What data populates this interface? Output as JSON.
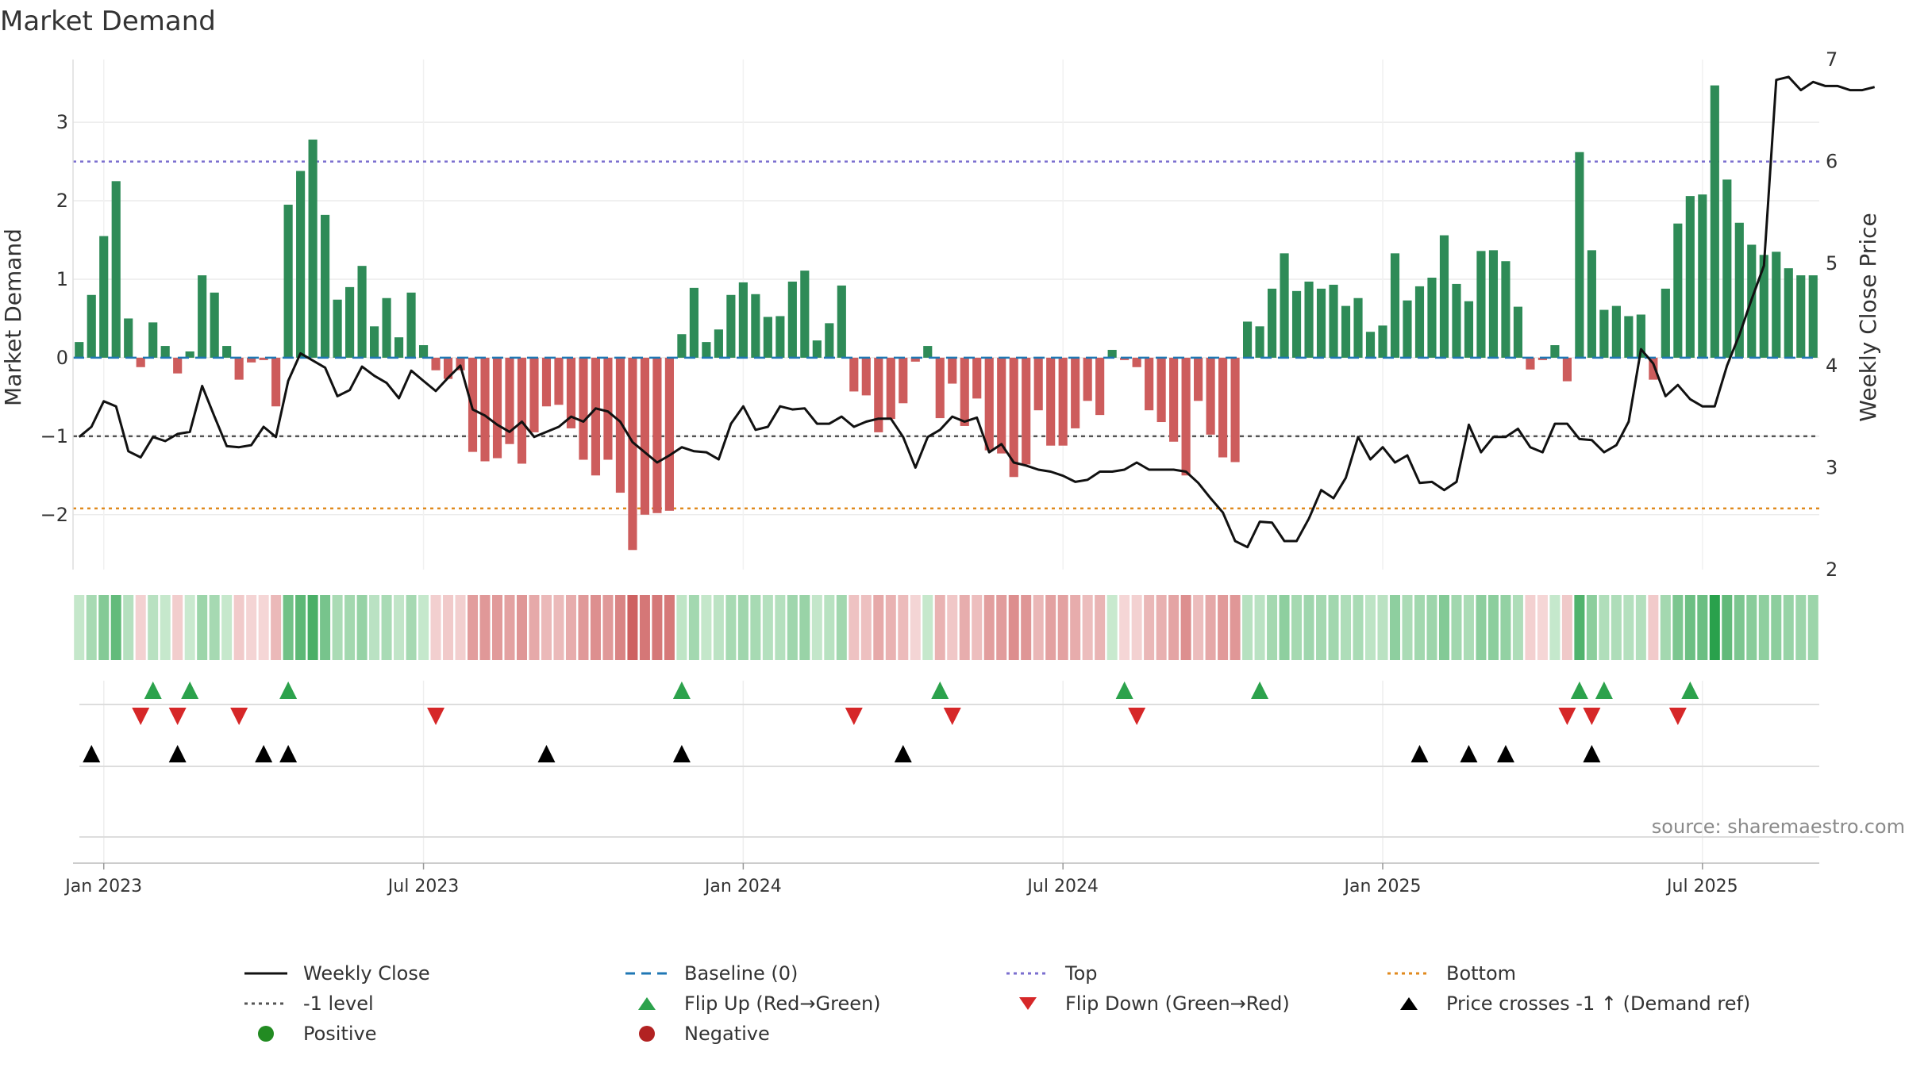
{
  "chart_data": {
    "type": "bar",
    "title": "Market Demand",
    "ylabel": "Market Demand",
    "y2label": "Weekly Close Price",
    "ylim": [
      -2.7,
      3.8
    ],
    "y2lim": [
      2.0,
      7.0
    ],
    "yticks": [
      3,
      2,
      1,
      0,
      -1,
      -2
    ],
    "yticklabels": [
      "3",
      "2",
      "1",
      "0",
      "−1",
      "−2"
    ],
    "y2ticks": [
      7,
      6,
      5,
      4,
      3,
      2
    ],
    "y2ticklabels": [
      "7",
      "6",
      "5",
      "4",
      "3",
      "2"
    ],
    "reference_lines": {
      "top": 2.5,
      "bottom": -1.92,
      "minus_one": -1.0,
      "baseline": 0
    },
    "xticks": [
      {
        "label": "Jan 2023",
        "week": 2
      },
      {
        "label": "Jul 2023",
        "week": 28
      },
      {
        "label": "Jan 2024",
        "week": 54
      },
      {
        "label": "Jul 2024",
        "week": 80
      },
      {
        "label": "Jan 2025",
        "week": 106
      },
      {
        "label": "Jul 2025",
        "week": 132
      }
    ],
    "demand": [
      0.2,
      0.8,
      1.55,
      2.25,
      0.5,
      -0.12,
      0.45,
      0.15,
      -0.2,
      0.08,
      1.05,
      0.83,
      0.15,
      -0.28,
      -0.06,
      -0.03,
      -0.62,
      1.95,
      2.38,
      2.78,
      1.82,
      0.74,
      0.9,
      1.17,
      0.4,
      0.76,
      0.26,
      0.83,
      0.16,
      -0.16,
      -0.27,
      -0.16,
      -1.2,
      -1.32,
      -1.28,
      -1.1,
      -1.35,
      -0.95,
      -0.62,
      -0.6,
      -0.9,
      -1.3,
      -1.5,
      -1.3,
      -1.72,
      -2.45,
      -2.0,
      -1.98,
      -1.95,
      0.3,
      0.89,
      0.2,
      0.36,
      0.8,
      0.96,
      0.81,
      0.52,
      0.53,
      0.97,
      1.11,
      0.22,
      0.44,
      0.92,
      -0.43,
      -0.48,
      -0.95,
      -0.78,
      -0.58,
      -0.05,
      0.15,
      -0.77,
      -0.33,
      -0.87,
      -0.52,
      -1.18,
      -1.22,
      -1.52,
      -1.36,
      -0.67,
      -1.12,
      -1.12,
      -0.9,
      -0.55,
      -0.73,
      0.1,
      -0.03,
      -0.12,
      -0.67,
      -0.82,
      -1.07,
      -1.5,
      -0.55,
      -0.98,
      -1.27,
      -1.33,
      0.46,
      0.4,
      0.88,
      1.33,
      0.85,
      0.97,
      0.88,
      0.93,
      0.66,
      0.76,
      0.33,
      0.41,
      1.33,
      0.73,
      0.91,
      1.02,
      1.56,
      0.94,
      0.72,
      1.36,
      1.37,
      1.23,
      0.65,
      -0.15,
      -0.03,
      0.16,
      -0.3,
      2.62,
      1.37,
      0.61,
      0.66,
      0.53,
      0.55,
      -0.28,
      0.88,
      1.71,
      2.06,
      2.08,
      3.47,
      2.27,
      1.72,
      1.44,
      1.31,
      1.35,
      1.14,
      1.05,
      1.05
    ],
    "price": [
      3.3,
      3.4,
      3.65,
      3.6,
      3.16,
      3.1,
      3.3,
      3.26,
      3.33,
      3.35,
      3.8,
      3.5,
      3.21,
      3.2,
      3.22,
      3.4,
      3.3,
      3.85,
      4.12,
      4.05,
      3.98,
      3.7,
      3.76,
      3.99,
      3.9,
      3.83,
      3.68,
      3.95,
      3.85,
      3.75,
      3.88,
      4.0,
      3.57,
      3.51,
      3.42,
      3.35,
      3.45,
      3.3,
      3.35,
      3.4,
      3.5,
      3.45,
      3.58,
      3.55,
      3.45,
      3.25,
      3.15,
      3.05,
      3.12,
      3.2,
      3.16,
      3.15,
      3.08,
      3.43,
      3.6,
      3.37,
      3.4,
      3.6,
      3.57,
      3.58,
      3.43,
      3.43,
      3.5,
      3.4,
      3.45,
      3.48,
      3.48,
      3.3,
      3.0,
      3.3,
      3.37,
      3.5,
      3.45,
      3.49,
      3.15,
      3.23,
      3.05,
      3.02,
      2.98,
      2.96,
      2.92,
      2.86,
      2.88,
      2.96,
      2.96,
      2.98,
      3.05,
      2.98,
      2.98,
      2.98,
      2.96,
      2.85,
      2.7,
      2.56,
      2.28,
      2.22,
      2.47,
      2.46,
      2.28,
      2.28,
      2.5,
      2.78,
      2.7,
      2.9,
      3.3,
      3.08,
      3.2,
      3.05,
      3.12,
      2.85,
      2.86,
      2.78,
      2.86,
      3.42,
      3.15,
      3.3,
      3.3,
      3.38,
      3.2,
      3.15,
      3.43,
      3.43,
      3.28,
      3.27,
      3.15,
      3.22,
      3.45,
      4.16,
      4.02,
      3.7,
      3.81,
      3.67,
      3.6,
      3.6,
      4.0,
      4.3,
      4.65,
      4.98,
      6.8,
      6.83,
      6.7,
      6.78,
      6.74,
      6.74,
      6.7,
      6.7,
      6.73
    ],
    "series": [
      {
        "name": "Market Demand",
        "type": "bar",
        "source": "demand"
      },
      {
        "name": "Weekly Close",
        "type": "line",
        "source": "price"
      }
    ],
    "flip_up_weeks": [
      6,
      9,
      17,
      49,
      70,
      85,
      96,
      122,
      124,
      131
    ],
    "flip_down_weeks": [
      5,
      8,
      13,
      29,
      63,
      71,
      86,
      121,
      123,
      130
    ],
    "price_cross_weeks": [
      1,
      8,
      15,
      17,
      38,
      49,
      67,
      109,
      113,
      116,
      123
    ],
    "legend": [
      {
        "label": "Weekly Close",
        "symbol": "solid-line",
        "color": "#111111"
      },
      {
        "label": "Baseline (0)",
        "symbol": "dash-line",
        "color": "#1f77b4"
      },
      {
        "label": "Top",
        "symbol": "dot-line",
        "color": "#7b6fcf"
      },
      {
        "label": "Bottom",
        "symbol": "dot-line",
        "color": "#e08a1e"
      },
      {
        "label": "-1 level",
        "symbol": "dot-line",
        "color": "#555555"
      },
      {
        "label": "Flip Up (Red→Green)",
        "symbol": "triangle-up",
        "color": "#2ca24c"
      },
      {
        "label": "Flip Down (Green→Red)",
        "symbol": "triangle-down",
        "color": "#d62728"
      },
      {
        "label": "Price crosses -1 ↑ (Demand ref)",
        "symbol": "triangle-up",
        "color": "#000000"
      },
      {
        "label": "Positive",
        "symbol": "circle",
        "color": "#228b22"
      },
      {
        "label": "Negative",
        "symbol": "circle",
        "color": "#b22222"
      }
    ],
    "legend_position": "bottom"
  },
  "colors": {
    "positive_bar": "#2e8b57",
    "negative_bar": "#cd5c5c",
    "price_line": "#111111",
    "top_line": "#7b6fcf",
    "bottom_line": "#e08a1e",
    "minus_one_line": "#555555",
    "baseline": "#1f77b4"
  },
  "source_note": "source: sharemaestro.com"
}
